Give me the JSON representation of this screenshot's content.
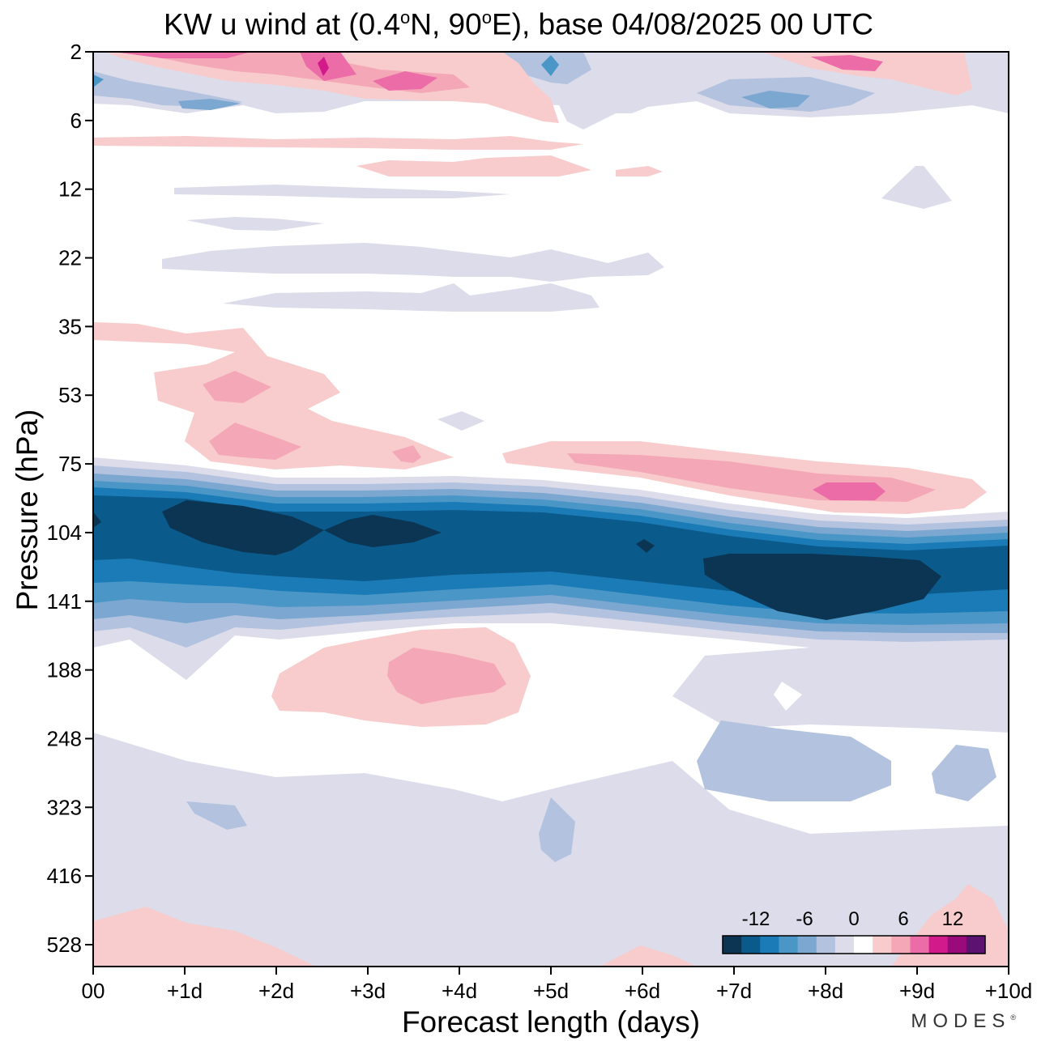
{
  "chart_data": {
    "type": "heatmap",
    "title_parts": {
      "prefix": "KW u wind at (0.4",
      "deg1": "o",
      "mid": "N, 90",
      "deg2": "o",
      "suffix": "E),  base 04/08/2025  00 UTC"
    },
    "xlabel": "Forecast length (days)",
    "ylabel": "Pressure (hPa)",
    "x_ticks": [
      "00",
      "+1d",
      "+2d",
      "+3d",
      "+4d",
      "+5d",
      "+6d",
      "+7d",
      "+8d",
      "+9d",
      "+10d"
    ],
    "xlim": [
      0,
      10
    ],
    "y_ticks": [
      "2",
      "6",
      "12",
      "22",
      "35",
      "53",
      "75",
      "104",
      "141",
      "188",
      "248",
      "323",
      "416",
      "528"
    ],
    "ylim": [
      2,
      650
    ],
    "y_scale": "log",
    "colorbar": {
      "labels": [
        "-12",
        "-6",
        "0",
        "6",
        "12"
      ],
      "levels": [
        -18,
        -15,
        -12,
        -9,
        -6,
        -3,
        0,
        3,
        6,
        9,
        12,
        15,
        18
      ],
      "colors": [
        "#0b3553",
        "#0b5a8c",
        "#1b7bb6",
        "#4a97c7",
        "#7ba7d0",
        "#b3c2de",
        "#dcdcea",
        "#ffffff",
        "#f8cccc",
        "#f4a8b7",
        "#ec6ca8",
        "#d21a8a",
        "#9a0a7a",
        "#5b1270"
      ],
      "placement": "bottom-right, inside plot"
    },
    "features": [
      {
        "desc": "strong easterly jet core",
        "day_range": [
          0.8,
          4.2
        ],
        "pressure_hPa": [
          95,
          118
        ],
        "value": -18
      },
      {
        "desc": "strong easterly jet core",
        "day_range": [
          6.7,
          9.3
        ],
        "pressure_hPa": [
          115,
          150
        ],
        "value": -18
      },
      {
        "desc": "westerly maximum",
        "day_range": [
          7.9,
          8.5
        ],
        "pressure_hPa": [
          85,
          92
        ],
        "value": 9
      },
      {
        "desc": "westerly maximum",
        "day_range": [
          3.0,
          4.5
        ],
        "pressure_hPa": [
          175,
          210
        ],
        "value": 6
      },
      {
        "desc": "upper westerlies",
        "day_range": [
          2.3,
          2.6
        ],
        "pressure_hPa": [
          2,
          3
        ],
        "value": 12
      }
    ]
  },
  "watermark": {
    "text": "MODES",
    "mark": "®"
  }
}
